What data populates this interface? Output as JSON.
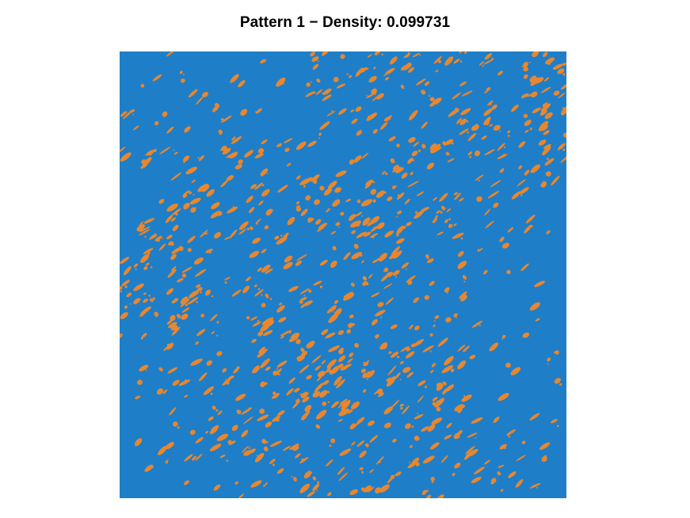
{
  "chart_data": {
    "type": "heatmap",
    "title": "Pattern 1 − Density: 0.099731",
    "density": 0.099731,
    "grid_size": [
      400,
      400
    ],
    "values": [
      0,
      1
    ],
    "colors": {
      "background": "#1f7ec8",
      "foreground": "#e8872e"
    },
    "orientation": "diagonal streaks rising left-to-right",
    "axes_visible": false,
    "grid": false,
    "legend": "none"
  }
}
